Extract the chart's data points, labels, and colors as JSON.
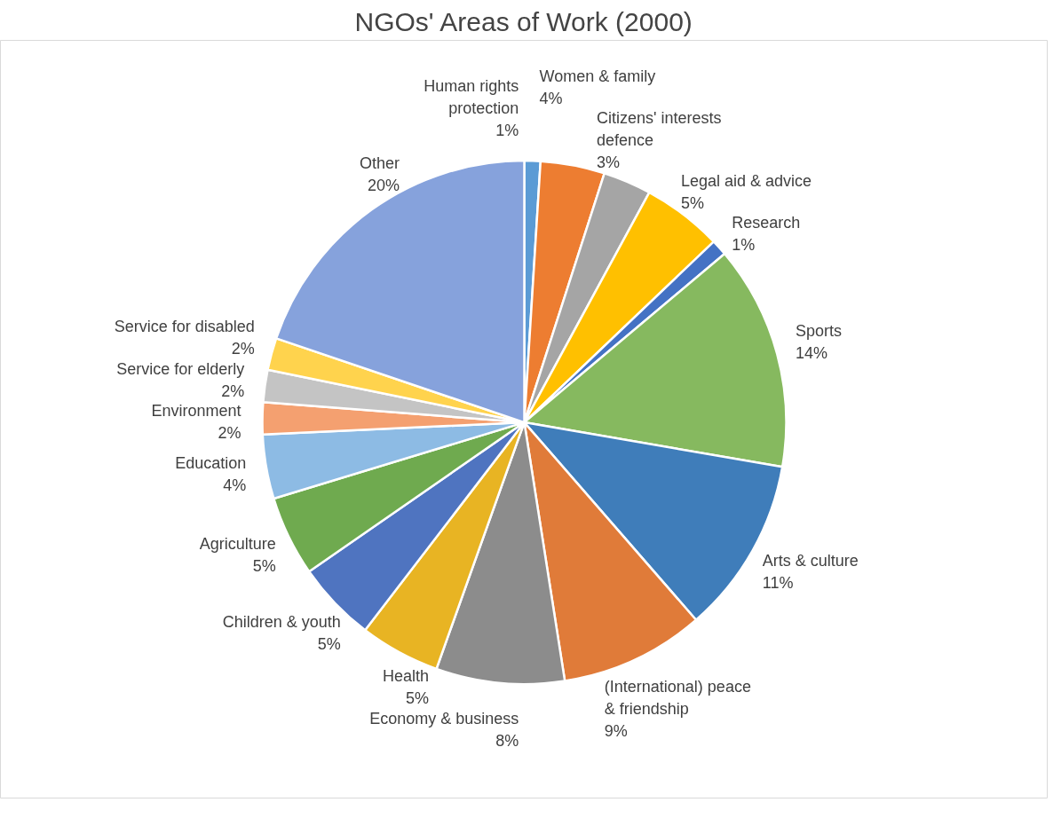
{
  "chart_data": {
    "type": "pie",
    "title": "NGOs' Areas of Work (2000)",
    "categories": [
      "Human rights protection",
      "Women & family",
      "Citizens' interests defence",
      "Legal aid & advice",
      "Research",
      "Sports",
      "Arts & culture",
      "(International) peace & friendship",
      "Economy & business",
      "Health",
      "Children & youth",
      "Agriculture",
      "Education",
      "Environment",
      "Service for elderly",
      "Service for disabled",
      "Other"
    ],
    "values": [
      1,
      4,
      3,
      5,
      1,
      14,
      11,
      9,
      8,
      5,
      5,
      5,
      4,
      2,
      2,
      2,
      20
    ],
    "value_labels": [
      "1%",
      "4%",
      "3%",
      "5%",
      "1%",
      "14%",
      "11%",
      "9%",
      "8%",
      "5%",
      "5%",
      "5%",
      "4%",
      "2%",
      "2%",
      "2%",
      "20%"
    ],
    "colors": [
      "#5b9bd5",
      "#ed7d31",
      "#a5a5a5",
      "#ffc000",
      "#4472c4",
      "#86b95f",
      "#3f7dba",
      "#e07b39",
      "#8c8c8c",
      "#e8b423",
      "#4f74c0",
      "#6faa4f",
      "#8dbbe4",
      "#f4a070",
      "#c4c4c4",
      "#ffd34d",
      "#86a2dc"
    ]
  }
}
